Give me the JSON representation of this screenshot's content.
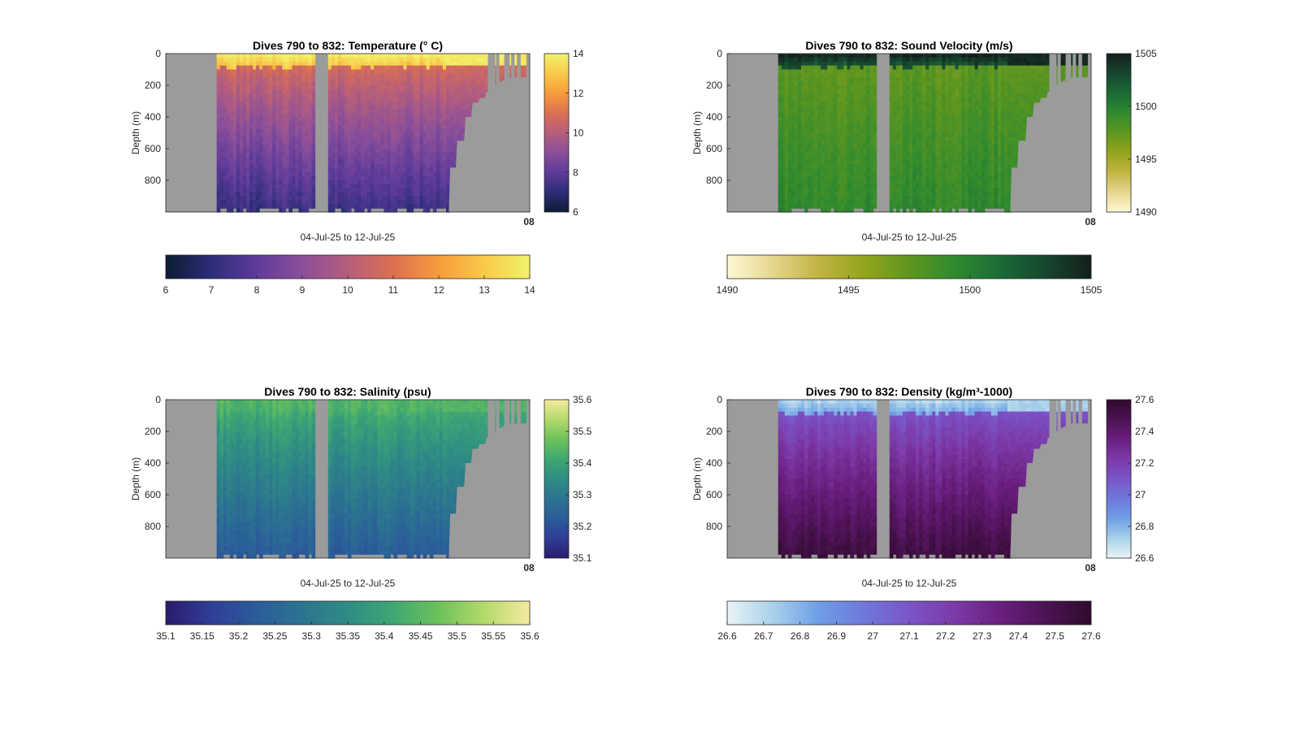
{
  "chart_data": [
    {
      "type": "heatmap",
      "title": "Dives 790 to 832: Temperature (° C)",
      "xlabel": "04-Jul-25 to 12-Jul-25",
      "ylabel": "Depth (m)",
      "y_ticks": [
        "0",
        "200",
        "400",
        "600",
        "800"
      ],
      "ylim": [
        0,
        1000
      ],
      "y_reversed": true,
      "x_tick_labels": [
        "08"
      ],
      "clim": [
        6,
        14
      ],
      "colorbar_ticks": [
        "6",
        "8",
        "10",
        "12",
        "14"
      ],
      "horizontal_colorbar_ticks": [
        "6",
        "7",
        "8",
        "9",
        "10",
        "11",
        "12",
        "13",
        "14"
      ],
      "colormap": [
        "#0b1c33",
        "#2c2d78",
        "#5e3b9a",
        "#8a4f9a",
        "#b55e7c",
        "#dc7051",
        "#f79b3c",
        "#f8ca4a",
        "#f1f26a"
      ],
      "surface_value": 13.8,
      "mix_value": 10.8,
      "bottom_value": 7.2,
      "bottom_color": "#4a33a2",
      "missing_color": "#9b9b9b"
    },
    {
      "type": "heatmap",
      "title": "Dives 790 to 832: Sound Velocity (m/s)",
      "xlabel": "04-Jul-25 to 12-Jul-25",
      "ylabel": "Depth (m)",
      "y_ticks": [
        "0",
        "200",
        "400",
        "600",
        "800"
      ],
      "ylim": [
        0,
        1000
      ],
      "y_reversed": true,
      "x_tick_labels": [
        "08"
      ],
      "clim": [
        1490,
        1505
      ],
      "colorbar_ticks": [
        "1490",
        "1495",
        "1500",
        "1505"
      ],
      "horizontal_colorbar_ticks": [
        "1490",
        "1495",
        "1500",
        "1505"
      ],
      "colormap": [
        "#fdf9d6",
        "#e6d68e",
        "#c2b443",
        "#94a41c",
        "#5f961f",
        "#2f8a2f",
        "#1b6b35",
        "#174630",
        "#131f1a"
      ],
      "surface_value": 1504.5,
      "mix_value": 1497.5,
      "bottom_value": 1499.5,
      "bottom_color": "#3f8c22",
      "missing_color": "#9b9b9b"
    },
    {
      "type": "heatmap",
      "title": "Dives 790 to 832: Salinity (psu)",
      "xlabel": "04-Jul-25 to 12-Jul-25",
      "ylabel": "Depth (m)",
      "y_ticks": [
        "0",
        "200",
        "400",
        "600",
        "800"
      ],
      "ylim": [
        0,
        1000
      ],
      "y_reversed": true,
      "x_tick_labels": [
        "08"
      ],
      "clim": [
        35.1,
        35.6
      ],
      "colorbar_ticks": [
        "35.1",
        "35.2",
        "35.3",
        "35.4",
        "35.5",
        "35.6"
      ],
      "horizontal_colorbar_ticks": [
        "35.1",
        "35.15",
        "35.2",
        "35.25",
        "35.3",
        "35.35",
        "35.4",
        "35.45",
        "35.5",
        "35.55",
        "35.6"
      ],
      "colormap": [
        "#2a1b6e",
        "#2f3e96",
        "#2b5c9a",
        "#2b7490",
        "#2f8c84",
        "#3ea773",
        "#6cc25a",
        "#b4d96b",
        "#f5eb9f"
      ],
      "surface_value": 35.44,
      "mix_value": 35.42,
      "bottom_value": 35.22,
      "bottom_color": "#2f5e9a",
      "missing_color": "#9b9b9b"
    },
    {
      "type": "heatmap",
      "title": "Dives 790 to 832: Density (kg/m³-1000)",
      "xlabel": "04-Jul-25 to 12-Jul-25",
      "ylabel": "Depth (m)",
      "y_ticks": [
        "0",
        "200",
        "400",
        "600",
        "800"
      ],
      "ylim": [
        0,
        1000
      ],
      "y_reversed": true,
      "x_tick_labels": [
        "08"
      ],
      "clim": [
        26.6,
        27.6
      ],
      "colorbar_ticks": [
        "26.6",
        "26.8",
        "27",
        "27.2",
        "27.4",
        "27.6"
      ],
      "horizontal_colorbar_ticks": [
        "26.6",
        "26.7",
        "26.8",
        "26.9",
        "27",
        "27.1",
        "27.2",
        "27.3",
        "27.4",
        "27.5",
        "27.6"
      ],
      "colormap": [
        "#eaf4f6",
        "#a9d1ea",
        "#6e9fe6",
        "#6f78dc",
        "#7a55c8",
        "#7c3aa7",
        "#6a1f80",
        "#4d1254",
        "#2e0b2c"
      ],
      "surface_value": 26.72,
      "mix_value": 27.1,
      "bottom_value": 27.55,
      "bottom_color": "#3b0d3d",
      "missing_color": "#9b9b9b"
    }
  ]
}
